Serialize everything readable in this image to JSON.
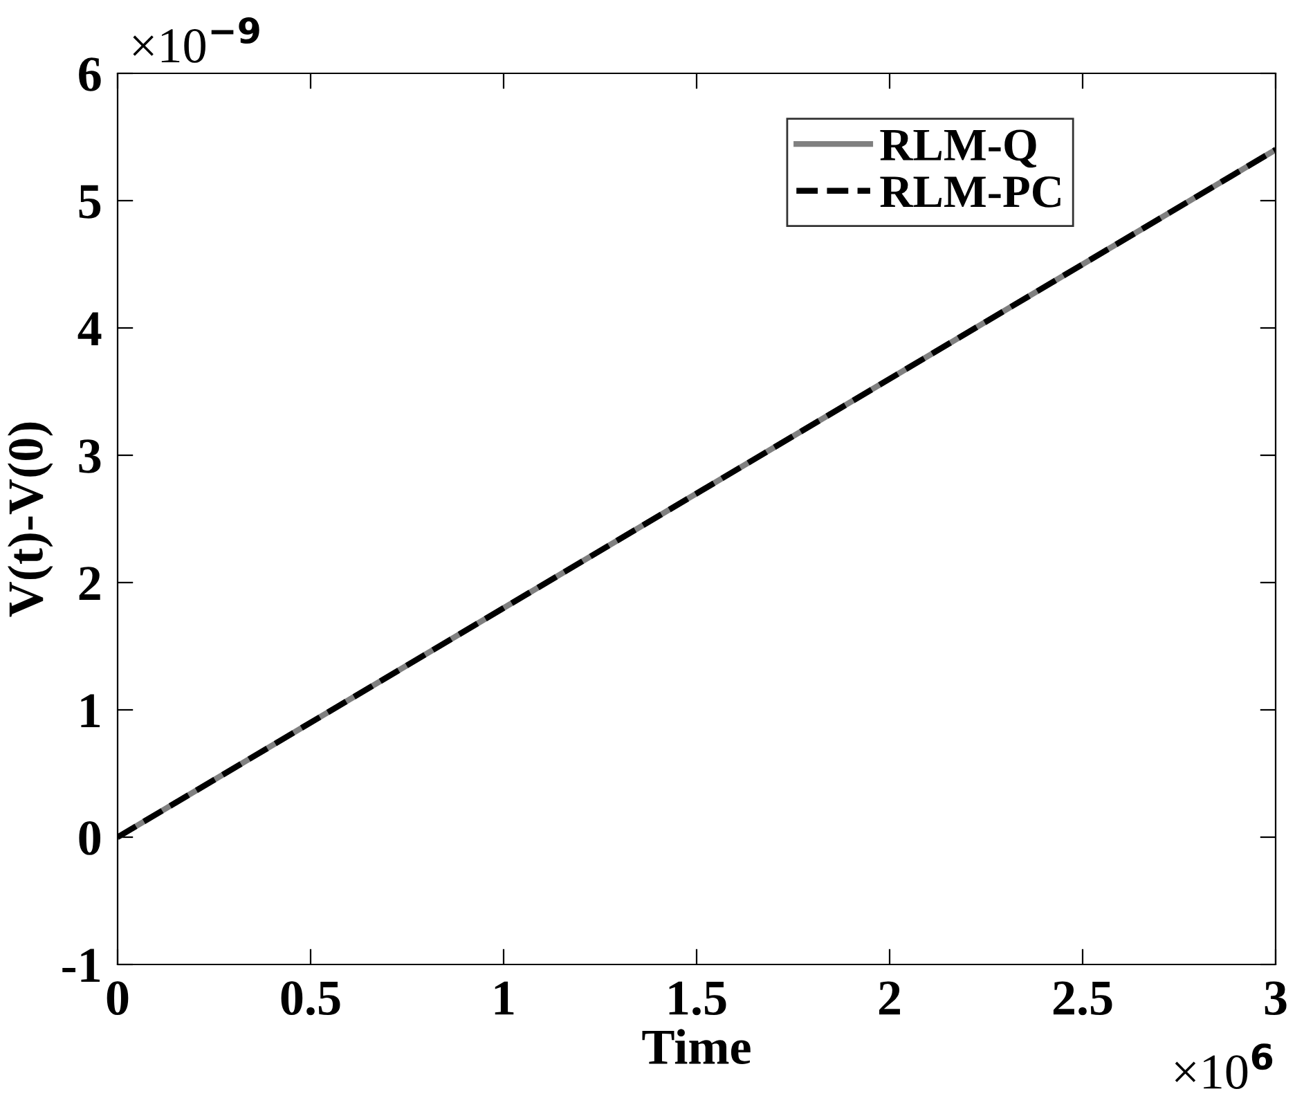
{
  "chart_data": {
    "type": "line",
    "xlabel": "Time",
    "ylabel": "V(t)-V(0)",
    "x": [
      0,
      3
    ],
    "series": [
      {
        "name": "RLM-Q",
        "color": "#808080",
        "values": [
          0,
          5.4
        ],
        "line_style": "solid"
      },
      {
        "name": "RLM-PC",
        "color": "#000000",
        "values": [
          0,
          5.4
        ],
        "line_style": "dashed"
      }
    ],
    "xlim": [
      0,
      3
    ],
    "xticks": [
      0,
      0.5,
      1,
      1.5,
      2,
      2.5,
      3
    ],
    "ylim": [
      -1,
      6
    ],
    "yticks": [
      -1,
      0,
      1,
      2,
      3,
      4,
      5,
      6
    ],
    "annotations": [
      "×10$^{−9}$",
      "×10$^{6}$"
    ],
    "legend": "top right",
    "grid": false,
    "marker": "none"
  }
}
